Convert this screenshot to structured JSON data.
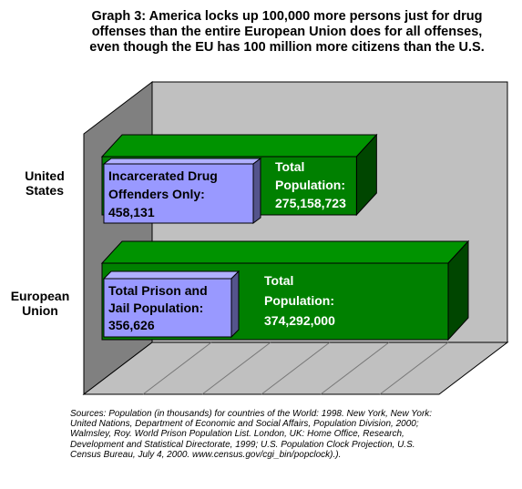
{
  "chart_data": {
    "type": "bar",
    "orientation": "horizontal",
    "three_d": true,
    "title_lines": [
      "Graph 3:  America locks up 100,000 more persons just for drug",
      "offenses than the entire European Union does for all offenses,",
      "even though the EU has 100 million more citizens than the U.S."
    ],
    "categories": [
      "United States",
      "European Union"
    ],
    "category_label_lines": [
      [
        "United",
        "States"
      ],
      [
        "European",
        "Union"
      ]
    ],
    "series": [
      {
        "values": [
          275158723,
          374292000
        ],
        "labels": [
          [
            "Total",
            "Population:",
            "275,158,723"
          ],
          [
            "Total",
            "Population:",
            "374,292,000"
          ]
        ],
        "color": "#008000"
      },
      {
        "values": [
          458131,
          356626
        ],
        "labels": [
          [
            "Incarcerated Drug",
            "Offenders Only:",
            "458,131"
          ],
          [
            "Total Prison and",
            "Jail Population:",
            "356,626"
          ]
        ],
        "color": "#9999ff"
      }
    ],
    "grid": false,
    "legend": "none",
    "wall_color": "#c0c0c0",
    "floor_color": "#c0c0c0"
  },
  "sources_lines": [
    "Sources: Population (in thousands) for countries of the World: 1998. New York, New York:",
    "United Nations, Department of Economic and Social Affairs, Population Division, 2000;",
    "Walmsley, Roy. World Prison Population List. London, UK: Home Office, Research,",
    "Development and Statistical Directorate, 1999; U.S. Population Clock Projection, U.S.",
    "Census Bureau, July 4, 2000.  www.census.gov/cgi_bin/popclock).)."
  ]
}
